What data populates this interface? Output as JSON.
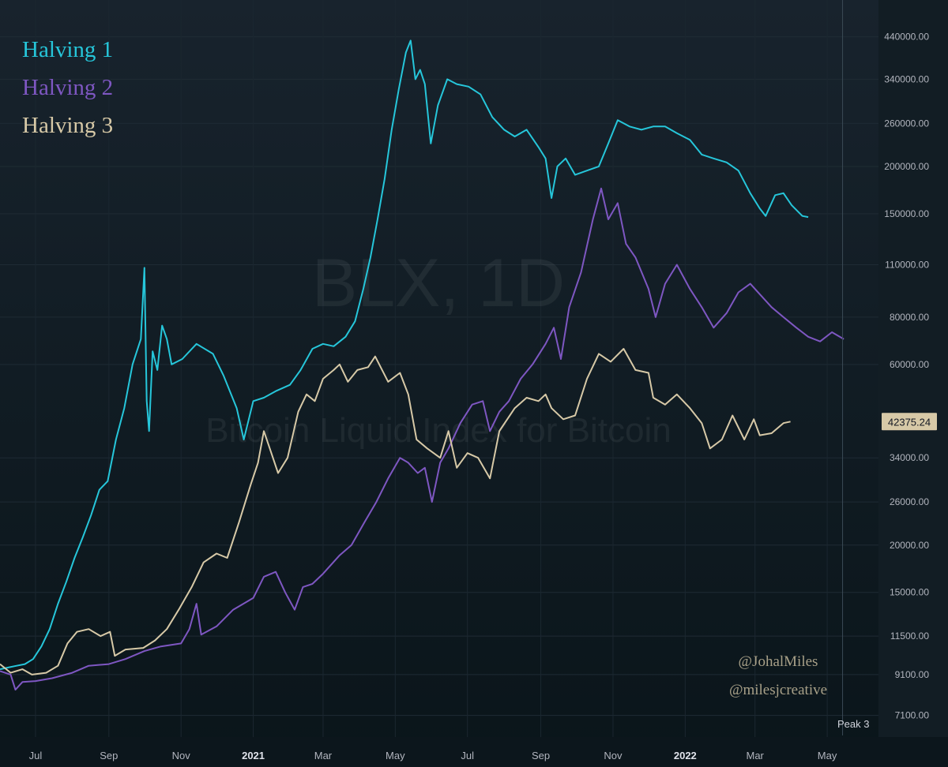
{
  "chart_data": {
    "type": "line",
    "scale": "log",
    "title": "",
    "watermark_symbol": "BLX, 1D",
    "watermark_subtitle": "Bitcoin Liquid Index for Bitcoin",
    "x_ticks": [
      "Jul",
      "Sep",
      "Nov",
      "2021",
      "Mar",
      "May",
      "Jul",
      "Sep",
      "Nov",
      "2022",
      "Mar",
      "May"
    ],
    "x_range": [
      "2020-06-01",
      "2022-06-12"
    ],
    "y_ticks": [
      440000,
      340000,
      260000,
      200000,
      150000,
      110000,
      80000,
      60000,
      34000,
      26000,
      20000,
      15000,
      11500,
      9100,
      7100
    ],
    "y_tick_labels": [
      "440000.00",
      "340000.00",
      "260000.00",
      "200000.00",
      "150000.00",
      "110000.00",
      "80000.00",
      "60000.00",
      "34000.00",
      "26000.00",
      "20000.00",
      "15000.00",
      "11500.00",
      "9100.00",
      "7100.00"
    ],
    "ylim": [
      6500,
      500000
    ],
    "price_label": "42375.24",
    "vline_label": "Peak 3",
    "vline_date": "2022-05-14",
    "grid": true,
    "legend_position": "top-left",
    "series": [
      {
        "name": "Halving 1",
        "color": "#26c6da",
        "points": [
          [
            "2020-06-01",
            9400
          ],
          [
            "2020-06-08",
            9500
          ],
          [
            "2020-06-15",
            9600
          ],
          [
            "2020-06-22",
            9700
          ],
          [
            "2020-06-29",
            10000
          ],
          [
            "2020-07-06",
            10800
          ],
          [
            "2020-07-13",
            12000
          ],
          [
            "2020-07-20",
            14000
          ],
          [
            "2020-07-27",
            16000
          ],
          [
            "2020-08-03",
            18500
          ],
          [
            "2020-08-10",
            21000
          ],
          [
            "2020-08-17",
            24000
          ],
          [
            "2020-08-24",
            28000
          ],
          [
            "2020-08-31",
            29500
          ],
          [
            "2020-09-07",
            38000
          ],
          [
            "2020-09-14",
            46000
          ],
          [
            "2020-09-21",
            60000
          ],
          [
            "2020-09-28",
            70000
          ],
          [
            "2020-10-01",
            108000
          ],
          [
            "2020-10-03",
            48000
          ],
          [
            "2020-10-05",
            40000
          ],
          [
            "2020-10-08",
            65000
          ],
          [
            "2020-10-12",
            58000
          ],
          [
            "2020-10-16",
            76000
          ],
          [
            "2020-10-20",
            70000
          ],
          [
            "2020-10-24",
            60000
          ],
          [
            "2020-11-02",
            62000
          ],
          [
            "2020-11-14",
            68000
          ],
          [
            "2020-11-28",
            64000
          ],
          [
            "2020-12-07",
            56000
          ],
          [
            "2020-12-18",
            46000
          ],
          [
            "2020-12-24",
            38000
          ],
          [
            "2021-01-01",
            48000
          ],
          [
            "2021-01-10",
            49000
          ],
          [
            "2021-01-20",
            51000
          ],
          [
            "2021-02-01",
            53000
          ],
          [
            "2021-02-10",
            58000
          ],
          [
            "2021-02-20",
            66000
          ],
          [
            "2021-03-01",
            68000
          ],
          [
            "2021-03-10",
            67000
          ],
          [
            "2021-03-20",
            71000
          ],
          [
            "2021-03-28",
            78000
          ],
          [
            "2021-04-04",
            95000
          ],
          [
            "2021-04-10",
            115000
          ],
          [
            "2021-04-16",
            145000
          ],
          [
            "2021-04-22",
            185000
          ],
          [
            "2021-04-28",
            250000
          ],
          [
            "2021-05-04",
            320000
          ],
          [
            "2021-05-10",
            400000
          ],
          [
            "2021-05-14",
            430000
          ],
          [
            "2021-05-18",
            340000
          ],
          [
            "2021-05-22",
            360000
          ],
          [
            "2021-05-26",
            330000
          ],
          [
            "2021-05-31",
            230000
          ],
          [
            "2021-06-06",
            290000
          ],
          [
            "2021-06-14",
            340000
          ],
          [
            "2021-06-22",
            330000
          ],
          [
            "2021-07-02",
            325000
          ],
          [
            "2021-07-12",
            310000
          ],
          [
            "2021-07-22",
            270000
          ],
          [
            "2021-08-01",
            250000
          ],
          [
            "2021-08-10",
            240000
          ],
          [
            "2021-08-20",
            250000
          ],
          [
            "2021-08-30",
            225000
          ],
          [
            "2021-09-05",
            210000
          ],
          [
            "2021-09-10",
            165000
          ],
          [
            "2021-09-15",
            200000
          ],
          [
            "2021-09-22",
            210000
          ],
          [
            "2021-09-30",
            190000
          ],
          [
            "2021-10-10",
            195000
          ],
          [
            "2021-10-20",
            200000
          ],
          [
            "2021-10-28",
            230000
          ],
          [
            "2021-11-05",
            265000
          ],
          [
            "2021-11-15",
            255000
          ],
          [
            "2021-11-25",
            250000
          ],
          [
            "2021-12-05",
            255000
          ],
          [
            "2021-12-15",
            255000
          ],
          [
            "2021-12-25",
            245000
          ],
          [
            "2022-01-05",
            235000
          ],
          [
            "2022-01-15",
            215000
          ],
          [
            "2022-01-25",
            210000
          ],
          [
            "2022-02-05",
            205000
          ],
          [
            "2022-02-15",
            195000
          ],
          [
            "2022-02-25",
            170000
          ],
          [
            "2022-03-05",
            155000
          ],
          [
            "2022-03-10",
            148000
          ],
          [
            "2022-03-18",
            168000
          ],
          [
            "2022-03-25",
            170000
          ],
          [
            "2022-04-01",
            158000
          ],
          [
            "2022-04-10",
            148000
          ],
          [
            "2022-04-15",
            147000
          ]
        ]
      },
      {
        "name": "Halving 2",
        "color": "#7e57c2",
        "points": [
          [
            "2020-06-01",
            9300
          ],
          [
            "2020-06-10",
            9100
          ],
          [
            "2020-06-14",
            8300
          ],
          [
            "2020-06-20",
            8700
          ],
          [
            "2020-07-01",
            8750
          ],
          [
            "2020-07-15",
            8900
          ],
          [
            "2020-08-01",
            9200
          ],
          [
            "2020-08-15",
            9600
          ],
          [
            "2020-09-01",
            9700
          ],
          [
            "2020-09-15",
            10000
          ],
          [
            "2020-10-01",
            10500
          ],
          [
            "2020-10-15",
            10800
          ],
          [
            "2020-11-01",
            11000
          ],
          [
            "2020-11-08",
            12000
          ],
          [
            "2020-11-14",
            14000
          ],
          [
            "2020-11-18",
            11600
          ],
          [
            "2020-12-01",
            12200
          ],
          [
            "2020-12-15",
            13500
          ],
          [
            "2021-01-01",
            14500
          ],
          [
            "2021-01-10",
            16500
          ],
          [
            "2021-01-20",
            17000
          ],
          [
            "2021-01-28",
            15000
          ],
          [
            "2021-02-05",
            13500
          ],
          [
            "2021-02-12",
            15500
          ],
          [
            "2021-02-20",
            15800
          ],
          [
            "2021-03-01",
            16800
          ],
          [
            "2021-03-15",
            18800
          ],
          [
            "2021-03-25",
            20000
          ],
          [
            "2021-04-05",
            23000
          ],
          [
            "2021-04-15",
            26000
          ],
          [
            "2021-04-25",
            30000
          ],
          [
            "2021-05-05",
            34000
          ],
          [
            "2021-05-12",
            33000
          ],
          [
            "2021-05-20",
            31000
          ],
          [
            "2021-05-26",
            32000
          ],
          [
            "2021-06-01",
            26000
          ],
          [
            "2021-06-08",
            33000
          ],
          [
            "2021-06-15",
            36000
          ],
          [
            "2021-06-25",
            42000
          ],
          [
            "2021-07-05",
            47000
          ],
          [
            "2021-07-14",
            48000
          ],
          [
            "2021-07-20",
            40000
          ],
          [
            "2021-07-28",
            45000
          ],
          [
            "2021-08-05",
            48000
          ],
          [
            "2021-08-15",
            55000
          ],
          [
            "2021-08-25",
            60000
          ],
          [
            "2021-09-05",
            68000
          ],
          [
            "2021-09-12",
            75000
          ],
          [
            "2021-09-18",
            62000
          ],
          [
            "2021-09-25",
            85000
          ],
          [
            "2021-10-05",
            105000
          ],
          [
            "2021-10-15",
            145000
          ],
          [
            "2021-10-22",
            175000
          ],
          [
            "2021-10-28",
            145000
          ],
          [
            "2021-11-05",
            160000
          ],
          [
            "2021-11-12",
            125000
          ],
          [
            "2021-11-20",
            115000
          ],
          [
            "2021-12-01",
            95000
          ],
          [
            "2021-12-07",
            80000
          ],
          [
            "2021-12-15",
            98000
          ],
          [
            "2021-12-25",
            110000
          ],
          [
            "2022-01-05",
            95000
          ],
          [
            "2022-01-15",
            85000
          ],
          [
            "2022-01-25",
            75000
          ],
          [
            "2022-02-05",
            82000
          ],
          [
            "2022-02-15",
            93000
          ],
          [
            "2022-02-25",
            98000
          ],
          [
            "2022-03-05",
            92000
          ],
          [
            "2022-03-15",
            85000
          ],
          [
            "2022-03-25",
            80000
          ],
          [
            "2022-04-05",
            75000
          ],
          [
            "2022-04-15",
            71000
          ],
          [
            "2022-04-25",
            69000
          ],
          [
            "2022-05-05",
            73000
          ],
          [
            "2022-05-15",
            70000
          ]
        ]
      },
      {
        "name": "Halving 3",
        "color": "#d7c9a7",
        "points": [
          [
            "2020-06-01",
            9700
          ],
          [
            "2020-06-10",
            9200
          ],
          [
            "2020-06-20",
            9400
          ],
          [
            "2020-06-28",
            9100
          ],
          [
            "2020-07-10",
            9200
          ],
          [
            "2020-07-20",
            9600
          ],
          [
            "2020-07-28",
            11000
          ],
          [
            "2020-08-05",
            11800
          ],
          [
            "2020-08-15",
            12000
          ],
          [
            "2020-08-25",
            11500
          ],
          [
            "2020-09-02",
            11800
          ],
          [
            "2020-09-06",
            10200
          ],
          [
            "2020-09-15",
            10600
          ],
          [
            "2020-09-30",
            10700
          ],
          [
            "2020-10-10",
            11200
          ],
          [
            "2020-10-20",
            12000
          ],
          [
            "2020-10-30",
            13500
          ],
          [
            "2020-11-10",
            15500
          ],
          [
            "2020-11-20",
            18000
          ],
          [
            "2020-12-01",
            19000
          ],
          [
            "2020-12-10",
            18500
          ],
          [
            "2020-12-20",
            23000
          ],
          [
            "2020-12-30",
            29000
          ],
          [
            "2021-01-05",
            33000
          ],
          [
            "2021-01-10",
            40000
          ],
          [
            "2021-01-15",
            36000
          ],
          [
            "2021-01-22",
            31000
          ],
          [
            "2021-01-30",
            34000
          ],
          [
            "2021-02-08",
            45000
          ],
          [
            "2021-02-15",
            50000
          ],
          [
            "2021-02-22",
            48000
          ],
          [
            "2021-03-01",
            55000
          ],
          [
            "2021-03-10",
            58000
          ],
          [
            "2021-03-15",
            60000
          ],
          [
            "2021-03-22",
            54000
          ],
          [
            "2021-03-30",
            58000
          ],
          [
            "2021-04-08",
            59000
          ],
          [
            "2021-04-14",
            63000
          ],
          [
            "2021-04-25",
            54000
          ],
          [
            "2021-05-05",
            57000
          ],
          [
            "2021-05-12",
            50000
          ],
          [
            "2021-05-19",
            38000
          ],
          [
            "2021-05-28",
            36000
          ],
          [
            "2021-06-08",
            34000
          ],
          [
            "2021-06-15",
            40000
          ],
          [
            "2021-06-22",
            32000
          ],
          [
            "2021-07-01",
            35000
          ],
          [
            "2021-07-10",
            34000
          ],
          [
            "2021-07-20",
            30000
          ],
          [
            "2021-07-28",
            40000
          ],
          [
            "2021-08-10",
            46000
          ],
          [
            "2021-08-20",
            49000
          ],
          [
            "2021-08-30",
            48000
          ],
          [
            "2021-09-05",
            50000
          ],
          [
            "2021-09-10",
            46000
          ],
          [
            "2021-09-20",
            43000
          ],
          [
            "2021-09-30",
            44000
          ],
          [
            "2021-10-10",
            55000
          ],
          [
            "2021-10-20",
            64000
          ],
          [
            "2021-10-30",
            61000
          ],
          [
            "2021-11-10",
            66000
          ],
          [
            "2021-11-20",
            58000
          ],
          [
            "2021-12-01",
            57000
          ],
          [
            "2021-12-05",
            49000
          ],
          [
            "2021-12-15",
            47000
          ],
          [
            "2021-12-25",
            50000
          ],
          [
            "2022-01-05",
            46000
          ],
          [
            "2022-01-15",
            42000
          ],
          [
            "2022-01-22",
            36000
          ],
          [
            "2022-02-01",
            38000
          ],
          [
            "2022-02-10",
            44000
          ],
          [
            "2022-02-20",
            38000
          ],
          [
            "2022-02-28",
            43000
          ],
          [
            "2022-03-05",
            39000
          ],
          [
            "2022-03-15",
            39500
          ],
          [
            "2022-03-25",
            42000
          ],
          [
            "2022-03-31",
            42375
          ]
        ]
      }
    ]
  },
  "credits": [
    "@JohalMiles",
    "@milesjcreative"
  ]
}
